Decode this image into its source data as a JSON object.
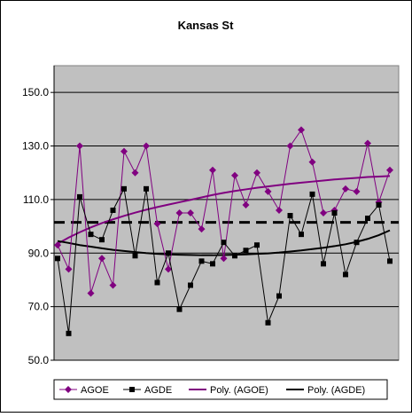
{
  "chart_data": {
    "type": "line",
    "title": "Kansas St",
    "xlabel": "",
    "ylabel": "",
    "ylim": [
      50,
      160
    ],
    "yticks": [
      50,
      70,
      90,
      110,
      130,
      150
    ],
    "ytick_labels": [
      "50.0",
      "70.0",
      "90.0",
      "110.0",
      "130.0",
      "150.0"
    ],
    "grid": "horizontal",
    "legend_position": "bottom",
    "reference_line": {
      "value": 101.5,
      "style": "dashed"
    },
    "x": [
      1,
      2,
      3,
      4,
      5,
      6,
      7,
      8,
      9,
      10,
      11,
      12,
      13,
      14,
      15,
      16,
      17,
      18,
      19,
      20,
      21,
      22,
      23,
      24,
      25,
      26,
      27,
      28,
      29,
      30,
      31,
      32,
      33,
      34,
      35,
      36,
      37,
      38,
      39,
      40,
      41,
      42,
      43,
      44,
      45,
      46,
      47,
      48
    ],
    "series": [
      {
        "name": "AGOE",
        "kind": "data",
        "color": "#800080",
        "marker": "diamond",
        "values": [
          93,
          84,
          130,
          75,
          88,
          78,
          128,
          120,
          130,
          101,
          84,
          105,
          105,
          99,
          121,
          88,
          119,
          108,
          120,
          113,
          106,
          130,
          136,
          124,
          105,
          106,
          114,
          113,
          131,
          109,
          121,
          null,
          null,
          null,
          null,
          null,
          null,
          null,
          null,
          null,
          null,
          null,
          null,
          null,
          null,
          null,
          null,
          null
        ]
      },
      {
        "name": "AGDE",
        "kind": "data",
        "color": "#000000",
        "marker": "square",
        "values": [
          88,
          60,
          111,
          97,
          95,
          106,
          114,
          89,
          114,
          79,
          90,
          69,
          78,
          87,
          86,
          94,
          89,
          91,
          93,
          64,
          74,
          104,
          97,
          112,
          86,
          105,
          82,
          94,
          103,
          108,
          87,
          null,
          null,
          null,
          null,
          null,
          null,
          null,
          null,
          null,
          null,
          null,
          null,
          null,
          null,
          null,
          null,
          null
        ]
      },
      {
        "name": "Poly. (AGOE)",
        "kind": "trend",
        "color": "#800080",
        "values": [
          93.5,
          95.8,
          97.8,
          99.6,
          101.2,
          102.6,
          103.9,
          105.1,
          106.2,
          107.2,
          108.1,
          109.0,
          109.9,
          110.8,
          111.7,
          112.5,
          113.2,
          113.8,
          114.4,
          114.9,
          115.4,
          115.9,
          116.3,
          116.7,
          117.1,
          117.5,
          117.8,
          118.1,
          118.4,
          118.6,
          118.8,
          null,
          null,
          null,
          null,
          null,
          null,
          null,
          null,
          null,
          null,
          null,
          null,
          null,
          null,
          null,
          null,
          null
        ]
      },
      {
        "name": "Poly. (AGDE)",
        "kind": "trend",
        "color": "#000000",
        "values": [
          94.5,
          93.8,
          93.0,
          92.4,
          91.8,
          91.2,
          90.8,
          90.4,
          90.0,
          89.7,
          89.5,
          89.4,
          89.3,
          89.2,
          89.2,
          89.3,
          89.4,
          89.5,
          89.7,
          89.9,
          90.2,
          90.6,
          91.0,
          91.5,
          92.0,
          92.6,
          93.3,
          94.2,
          95.3,
          96.7,
          98.5,
          null,
          null,
          null,
          null,
          null,
          null,
          null,
          null,
          null,
          null,
          null,
          null,
          null,
          null,
          null,
          null,
          null
        ]
      }
    ]
  },
  "colors": {
    "plot_area": "#c0c0c0",
    "grid": "#000000",
    "agoe": "#800080",
    "agde": "#000000"
  }
}
